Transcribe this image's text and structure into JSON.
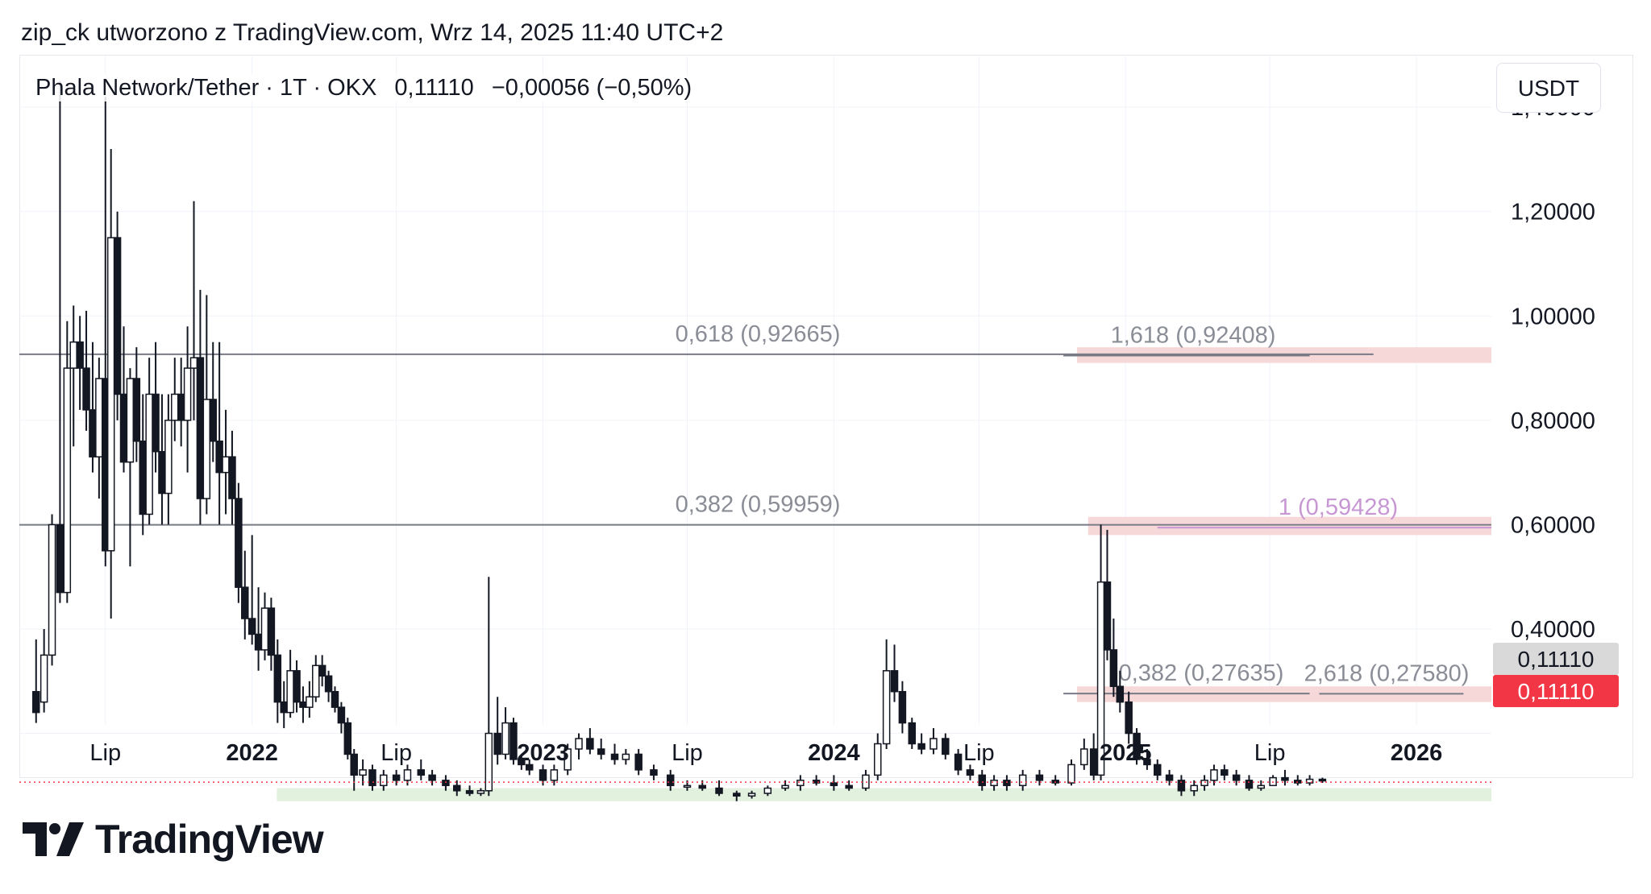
{
  "header": {
    "attribution": "zip_ck utworzono z TradingView.com, Wrz 14, 2025 11:40 UTC+2"
  },
  "legend": {
    "symbol": "Phala Network/Tether · 1T · OKX",
    "price": "0,11110",
    "change": "−0,00056 (−0,50%)"
  },
  "currency": "USDT",
  "price_tags": {
    "current": "0,11110",
    "last": "0,11110",
    "last_color": "#f23645",
    "current_color": "#d9d9d9"
  },
  "brand": {
    "name": "TradingView"
  },
  "chart_data": {
    "type": "candlestick",
    "y_axis": {
      "ylim": [
        0.02,
        1.5
      ],
      "ticks": [
        {
          "value": 1.4,
          "label": "1,40000"
        },
        {
          "value": 1.2,
          "label": "1,20000"
        },
        {
          "value": 1.0,
          "label": "1,00000"
        },
        {
          "value": 0.8,
          "label": "0,80000"
        },
        {
          "value": 0.6,
          "label": "0,60000"
        },
        {
          "value": 0.4,
          "label": "0,40000"
        }
      ]
    },
    "x_axis": {
      "range": [
        "2021-03-15",
        "2026-04-05"
      ],
      "ticks": [
        {
          "date": "2021-07-01",
          "label": "Lip",
          "bold": false
        },
        {
          "date": "2022-01-01",
          "label": "2022",
          "bold": true
        },
        {
          "date": "2022-07-01",
          "label": "Lip",
          "bold": false
        },
        {
          "date": "2023-01-01",
          "label": "2023",
          "bold": true
        },
        {
          "date": "2023-07-01",
          "label": "Lip",
          "bold": false
        },
        {
          "date": "2024-01-01",
          "label": "2024",
          "bold": true
        },
        {
          "date": "2024-07-01",
          "label": "Lip",
          "bold": false
        },
        {
          "date": "2025-01-01",
          "label": "2025",
          "bold": true
        },
        {
          "date": "2025-07-01",
          "label": "Lip",
          "bold": false
        },
        {
          "date": "2026-01-01",
          "label": "2026",
          "bold": true
        }
      ]
    },
    "current_price": 0.1111,
    "fib_levels": [
      {
        "label": "0,618 (0,92665)",
        "value": 0.92665,
        "x1": "2021-03-15",
        "x2": "2025-11-08",
        "color": "#787b86"
      },
      {
        "label": "0,382 (0,59959)",
        "value": 0.59959,
        "x1": "2021-03-15",
        "x2": "2026-04-05",
        "color": "#787b86"
      },
      {
        "label": "1,618 (0,92408)",
        "value": 0.92408,
        "x1": "2024-10-15",
        "x2": "2025-08-20",
        "color": "#787b86"
      },
      {
        "label": "1 (0,59428)",
        "value": 0.59428,
        "x1": "2025-02-10",
        "x2": "2026-04-05",
        "color": "#c797d4"
      },
      {
        "label": "0,382 (0,27635)",
        "value": 0.27635,
        "x1": "2024-10-15",
        "x2": "2025-08-20",
        "color": "#787b86"
      },
      {
        "label": "2,618 (0,27580)",
        "value": 0.2758,
        "x1": "2025-09-01",
        "x2": "2026-03-01",
        "color": "#787b86"
      }
    ],
    "zones": [
      {
        "y1": 0.91,
        "y2": 0.94,
        "x1": "2024-11-01",
        "x2": "2026-04-05",
        "color": "#f7d8d8"
      },
      {
        "y1": 0.58,
        "y2": 0.615,
        "x1": "2024-11-15",
        "x2": "2026-04-05",
        "color": "#f7d8d8"
      },
      {
        "y1": 0.26,
        "y2": 0.29,
        "x1": "2024-11-01",
        "x2": "2026-04-05",
        "color": "#f7d8d8"
      },
      {
        "y1": 0.07,
        "y2": 0.095,
        "x1": "2022-02-01",
        "x2": "2026-04-05",
        "color": "#e2f1de"
      }
    ],
    "candles": [
      {
        "t": "2021-04-05",
        "o": 0.28,
        "h": 0.38,
        "l": 0.22,
        "c": 0.24
      },
      {
        "t": "2021-04-15",
        "o": 0.26,
        "h": 0.4,
        "l": 0.24,
        "c": 0.35
      },
      {
        "t": "2021-04-25",
        "o": 0.35,
        "h": 0.62,
        "l": 0.33,
        "c": 0.6
      },
      {
        "t": "2021-05-05",
        "o": 0.6,
        "h": 1.45,
        "l": 0.45,
        "c": 0.47
      },
      {
        "t": "2021-05-14",
        "o": 0.47,
        "h": 0.99,
        "l": 0.45,
        "c": 0.9
      },
      {
        "t": "2021-05-22",
        "o": 0.9,
        "h": 1.02,
        "l": 0.75,
        "c": 0.95
      },
      {
        "t": "2021-05-30",
        "o": 0.95,
        "h": 1.0,
        "l": 0.82,
        "c": 0.9
      },
      {
        "t": "2021-06-07",
        "o": 0.9,
        "h": 1.01,
        "l": 0.78,
        "c": 0.82
      },
      {
        "t": "2021-06-15",
        "o": 0.82,
        "h": 0.95,
        "l": 0.7,
        "c": 0.73
      },
      {
        "t": "2021-06-23",
        "o": 0.73,
        "h": 0.92,
        "l": 0.65,
        "c": 0.88
      },
      {
        "t": "2021-07-01",
        "o": 0.88,
        "h": 1.42,
        "l": 0.52,
        "c": 0.55
      },
      {
        "t": "2021-07-08",
        "o": 0.55,
        "h": 1.32,
        "l": 0.42,
        "c": 1.15
      },
      {
        "t": "2021-07-16",
        "o": 1.15,
        "h": 1.2,
        "l": 0.8,
        "c": 0.85
      },
      {
        "t": "2021-07-24",
        "o": 0.85,
        "h": 0.98,
        "l": 0.7,
        "c": 0.72
      },
      {
        "t": "2021-08-01",
        "o": 0.72,
        "h": 0.9,
        "l": 0.52,
        "c": 0.88
      },
      {
        "t": "2021-08-09",
        "o": 0.88,
        "h": 0.94,
        "l": 0.72,
        "c": 0.76
      },
      {
        "t": "2021-08-17",
        "o": 0.76,
        "h": 0.85,
        "l": 0.58,
        "c": 0.62
      },
      {
        "t": "2021-08-25",
        "o": 0.62,
        "h": 0.92,
        "l": 0.6,
        "c": 0.85
      },
      {
        "t": "2021-09-02",
        "o": 0.85,
        "h": 0.95,
        "l": 0.7,
        "c": 0.74
      },
      {
        "t": "2021-09-10",
        "o": 0.74,
        "h": 0.85,
        "l": 0.6,
        "c": 0.66
      },
      {
        "t": "2021-09-18",
        "o": 0.66,
        "h": 0.85,
        "l": 0.6,
        "c": 0.8
      },
      {
        "t": "2021-09-26",
        "o": 0.8,
        "h": 0.92,
        "l": 0.76,
        "c": 0.85
      },
      {
        "t": "2021-10-04",
        "o": 0.85,
        "h": 0.92,
        "l": 0.75,
        "c": 0.8
      },
      {
        "t": "2021-10-12",
        "o": 0.8,
        "h": 0.98,
        "l": 0.7,
        "c": 0.9
      },
      {
        "t": "2021-10-20",
        "o": 0.9,
        "h": 1.22,
        "l": 0.8,
        "c": 0.92
      },
      {
        "t": "2021-10-28",
        "o": 0.92,
        "h": 1.05,
        "l": 0.6,
        "c": 0.65
      },
      {
        "t": "2021-11-05",
        "o": 0.65,
        "h": 1.04,
        "l": 0.62,
        "c": 0.84
      },
      {
        "t": "2021-11-13",
        "o": 0.84,
        "h": 0.95,
        "l": 0.72,
        "c": 0.76
      },
      {
        "t": "2021-11-21",
        "o": 0.76,
        "h": 0.95,
        "l": 0.6,
        "c": 0.7
      },
      {
        "t": "2021-11-29",
        "o": 0.7,
        "h": 0.82,
        "l": 0.62,
        "c": 0.73
      },
      {
        "t": "2021-12-07",
        "o": 0.73,
        "h": 0.78,
        "l": 0.6,
        "c": 0.65
      },
      {
        "t": "2021-12-15",
        "o": 0.65,
        "h": 0.68,
        "l": 0.45,
        "c": 0.48
      },
      {
        "t": "2021-12-23",
        "o": 0.48,
        "h": 0.55,
        "l": 0.38,
        "c": 0.42
      },
      {
        "t": "2022-01-01",
        "o": 0.42,
        "h": 0.58,
        "l": 0.37,
        "c": 0.39
      },
      {
        "t": "2022-01-09",
        "o": 0.39,
        "h": 0.48,
        "l": 0.32,
        "c": 0.36
      },
      {
        "t": "2022-01-17",
        "o": 0.36,
        "h": 0.47,
        "l": 0.34,
        "c": 0.44
      },
      {
        "t": "2022-01-25",
        "o": 0.44,
        "h": 0.46,
        "l": 0.32,
        "c": 0.35
      },
      {
        "t": "2022-02-02",
        "o": 0.35,
        "h": 0.38,
        "l": 0.22,
        "c": 0.26
      },
      {
        "t": "2022-02-10",
        "o": 0.26,
        "h": 0.3,
        "l": 0.21,
        "c": 0.24
      },
      {
        "t": "2022-02-18",
        "o": 0.24,
        "h": 0.36,
        "l": 0.23,
        "c": 0.32
      },
      {
        "t": "2022-02-26",
        "o": 0.32,
        "h": 0.34,
        "l": 0.24,
        "c": 0.26
      },
      {
        "t": "2022-03-06",
        "o": 0.26,
        "h": 0.29,
        "l": 0.22,
        "c": 0.25
      },
      {
        "t": "2022-03-14",
        "o": 0.25,
        "h": 0.3,
        "l": 0.23,
        "c": 0.27
      },
      {
        "t": "2022-03-22",
        "o": 0.27,
        "h": 0.35,
        "l": 0.26,
        "c": 0.33
      },
      {
        "t": "2022-03-30",
        "o": 0.33,
        "h": 0.35,
        "l": 0.29,
        "c": 0.31
      },
      {
        "t": "2022-04-07",
        "o": 0.31,
        "h": 0.32,
        "l": 0.26,
        "c": 0.28
      },
      {
        "t": "2022-04-15",
        "o": 0.28,
        "h": 0.29,
        "l": 0.24,
        "c": 0.25
      },
      {
        "t": "2022-04-23",
        "o": 0.25,
        "h": 0.26,
        "l": 0.2,
        "c": 0.22
      },
      {
        "t": "2022-05-01",
        "o": 0.22,
        "h": 0.23,
        "l": 0.15,
        "c": 0.16
      },
      {
        "t": "2022-05-09",
        "o": 0.16,
        "h": 0.17,
        "l": 0.09,
        "c": 0.12
      },
      {
        "t": "2022-05-20",
        "o": 0.12,
        "h": 0.15,
        "l": 0.1,
        "c": 0.13
      },
      {
        "t": "2022-06-01",
        "o": 0.13,
        "h": 0.14,
        "l": 0.09,
        "c": 0.1
      },
      {
        "t": "2022-06-15",
        "o": 0.1,
        "h": 0.13,
        "l": 0.09,
        "c": 0.12
      },
      {
        "t": "2022-07-01",
        "o": 0.12,
        "h": 0.13,
        "l": 0.1,
        "c": 0.11
      },
      {
        "t": "2022-07-15",
        "o": 0.11,
        "h": 0.14,
        "l": 0.1,
        "c": 0.13
      },
      {
        "t": "2022-08-01",
        "o": 0.13,
        "h": 0.15,
        "l": 0.11,
        "c": 0.12
      },
      {
        "t": "2022-08-15",
        "o": 0.12,
        "h": 0.13,
        "l": 0.1,
        "c": 0.11
      },
      {
        "t": "2022-09-01",
        "o": 0.11,
        "h": 0.12,
        "l": 0.09,
        "c": 0.1
      },
      {
        "t": "2022-09-15",
        "o": 0.1,
        "h": 0.11,
        "l": 0.08,
        "c": 0.09
      },
      {
        "t": "2022-10-01",
        "o": 0.09,
        "h": 0.1,
        "l": 0.08,
        "c": 0.085
      },
      {
        "t": "2022-10-15",
        "o": 0.085,
        "h": 0.095,
        "l": 0.08,
        "c": 0.09
      },
      {
        "t": "2022-10-25",
        "o": 0.09,
        "h": 0.5,
        "l": 0.08,
        "c": 0.2
      },
      {
        "t": "2022-11-05",
        "o": 0.2,
        "h": 0.27,
        "l": 0.14,
        "c": 0.16
      },
      {
        "t": "2022-11-15",
        "o": 0.16,
        "h": 0.25,
        "l": 0.15,
        "c": 0.22
      },
      {
        "t": "2022-11-25",
        "o": 0.22,
        "h": 0.23,
        "l": 0.14,
        "c": 0.15
      },
      {
        "t": "2022-12-05",
        "o": 0.15,
        "h": 0.16,
        "l": 0.13,
        "c": 0.14
      },
      {
        "t": "2022-12-15",
        "o": 0.14,
        "h": 0.15,
        "l": 0.12,
        "c": 0.13
      },
      {
        "t": "2023-01-01",
        "o": 0.13,
        "h": 0.14,
        "l": 0.1,
        "c": 0.11
      },
      {
        "t": "2023-01-15",
        "o": 0.11,
        "h": 0.14,
        "l": 0.1,
        "c": 0.13
      },
      {
        "t": "2023-02-01",
        "o": 0.13,
        "h": 0.18,
        "l": 0.12,
        "c": 0.17
      },
      {
        "t": "2023-02-15",
        "o": 0.17,
        "h": 0.2,
        "l": 0.15,
        "c": 0.19
      },
      {
        "t": "2023-03-01",
        "o": 0.19,
        "h": 0.21,
        "l": 0.16,
        "c": 0.17
      },
      {
        "t": "2023-03-15",
        "o": 0.17,
        "h": 0.19,
        "l": 0.15,
        "c": 0.16
      },
      {
        "t": "2023-04-01",
        "o": 0.16,
        "h": 0.18,
        "l": 0.14,
        "c": 0.15
      },
      {
        "t": "2023-04-15",
        "o": 0.15,
        "h": 0.17,
        "l": 0.14,
        "c": 0.16
      },
      {
        "t": "2023-05-01",
        "o": 0.16,
        "h": 0.17,
        "l": 0.12,
        "c": 0.13
      },
      {
        "t": "2023-05-20",
        "o": 0.13,
        "h": 0.14,
        "l": 0.11,
        "c": 0.12
      },
      {
        "t": "2023-06-10",
        "o": 0.12,
        "h": 0.13,
        "l": 0.09,
        "c": 0.1
      },
      {
        "t": "2023-07-01",
        "o": 0.1,
        "h": 0.11,
        "l": 0.09,
        "c": 0.1
      },
      {
        "t": "2023-07-20",
        "o": 0.1,
        "h": 0.11,
        "l": 0.09,
        "c": 0.095
      },
      {
        "t": "2023-08-10",
        "o": 0.095,
        "h": 0.11,
        "l": 0.08,
        "c": 0.085
      },
      {
        "t": "2023-09-01",
        "o": 0.085,
        "h": 0.09,
        "l": 0.07,
        "c": 0.08
      },
      {
        "t": "2023-09-20",
        "o": 0.08,
        "h": 0.09,
        "l": 0.075,
        "c": 0.085
      },
      {
        "t": "2023-10-10",
        "o": 0.085,
        "h": 0.1,
        "l": 0.08,
        "c": 0.095
      },
      {
        "t": "2023-11-01",
        "o": 0.095,
        "h": 0.11,
        "l": 0.09,
        "c": 0.1
      },
      {
        "t": "2023-11-20",
        "o": 0.1,
        "h": 0.12,
        "l": 0.09,
        "c": 0.11
      },
      {
        "t": "2023-12-10",
        "o": 0.11,
        "h": 0.12,
        "l": 0.1,
        "c": 0.105
      },
      {
        "t": "2024-01-01",
        "o": 0.105,
        "h": 0.12,
        "l": 0.09,
        "c": 0.1
      },
      {
        "t": "2024-01-20",
        "o": 0.1,
        "h": 0.11,
        "l": 0.09,
        "c": 0.095
      },
      {
        "t": "2024-02-10",
        "o": 0.095,
        "h": 0.13,
        "l": 0.09,
        "c": 0.12
      },
      {
        "t": "2024-02-25",
        "o": 0.12,
        "h": 0.2,
        "l": 0.11,
        "c": 0.18
      },
      {
        "t": "2024-03-07",
        "o": 0.18,
        "h": 0.38,
        "l": 0.17,
        "c": 0.32
      },
      {
        "t": "2024-03-17",
        "o": 0.32,
        "h": 0.37,
        "l": 0.26,
        "c": 0.28
      },
      {
        "t": "2024-03-27",
        "o": 0.28,
        "h": 0.3,
        "l": 0.2,
        "c": 0.22
      },
      {
        "t": "2024-04-08",
        "o": 0.22,
        "h": 0.23,
        "l": 0.17,
        "c": 0.18
      },
      {
        "t": "2024-04-20",
        "o": 0.18,
        "h": 0.2,
        "l": 0.16,
        "c": 0.17
      },
      {
        "t": "2024-05-05",
        "o": 0.17,
        "h": 0.21,
        "l": 0.16,
        "c": 0.19
      },
      {
        "t": "2024-05-20",
        "o": 0.19,
        "h": 0.2,
        "l": 0.15,
        "c": 0.16
      },
      {
        "t": "2024-06-05",
        "o": 0.16,
        "h": 0.17,
        "l": 0.12,
        "c": 0.13
      },
      {
        "t": "2024-06-20",
        "o": 0.13,
        "h": 0.14,
        "l": 0.11,
        "c": 0.12
      },
      {
        "t": "2024-07-05",
        "o": 0.12,
        "h": 0.13,
        "l": 0.09,
        "c": 0.1
      },
      {
        "t": "2024-07-20",
        "o": 0.1,
        "h": 0.12,
        "l": 0.09,
        "c": 0.11
      },
      {
        "t": "2024-08-05",
        "o": 0.11,
        "h": 0.12,
        "l": 0.09,
        "c": 0.1
      },
      {
        "t": "2024-08-25",
        "o": 0.1,
        "h": 0.13,
        "l": 0.09,
        "c": 0.12
      },
      {
        "t": "2024-09-15",
        "o": 0.12,
        "h": 0.13,
        "l": 0.1,
        "c": 0.11
      },
      {
        "t": "2024-10-05",
        "o": 0.11,
        "h": 0.12,
        "l": 0.1,
        "c": 0.105
      },
      {
        "t": "2024-10-25",
        "o": 0.105,
        "h": 0.15,
        "l": 0.1,
        "c": 0.14
      },
      {
        "t": "2024-11-10",
        "o": 0.14,
        "h": 0.19,
        "l": 0.13,
        "c": 0.17
      },
      {
        "t": "2024-11-22",
        "o": 0.17,
        "h": 0.2,
        "l": 0.11,
        "c": 0.12
      },
      {
        "t": "2024-12-01",
        "o": 0.12,
        "h": 0.6,
        "l": 0.11,
        "c": 0.49
      },
      {
        "t": "2024-12-09",
        "o": 0.49,
        "h": 0.59,
        "l": 0.34,
        "c": 0.36
      },
      {
        "t": "2024-12-17",
        "o": 0.36,
        "h": 0.42,
        "l": 0.27,
        "c": 0.29
      },
      {
        "t": "2024-12-25",
        "o": 0.29,
        "h": 0.32,
        "l": 0.24,
        "c": 0.26
      },
      {
        "t": "2025-01-05",
        "o": 0.26,
        "h": 0.28,
        "l": 0.18,
        "c": 0.2
      },
      {
        "t": "2025-01-15",
        "o": 0.2,
        "h": 0.21,
        "l": 0.14,
        "c": 0.15
      },
      {
        "t": "2025-01-28",
        "o": 0.15,
        "h": 0.17,
        "l": 0.13,
        "c": 0.14
      },
      {
        "t": "2025-02-10",
        "o": 0.14,
        "h": 0.15,
        "l": 0.11,
        "c": 0.12
      },
      {
        "t": "2025-02-25",
        "o": 0.12,
        "h": 0.13,
        "l": 0.1,
        "c": 0.11
      },
      {
        "t": "2025-03-12",
        "o": 0.11,
        "h": 0.12,
        "l": 0.08,
        "c": 0.09
      },
      {
        "t": "2025-03-28",
        "o": 0.09,
        "h": 0.11,
        "l": 0.08,
        "c": 0.1
      },
      {
        "t": "2025-04-10",
        "o": 0.1,
        "h": 0.12,
        "l": 0.09,
        "c": 0.11
      },
      {
        "t": "2025-04-22",
        "o": 0.11,
        "h": 0.14,
        "l": 0.1,
        "c": 0.13
      },
      {
        "t": "2025-05-05",
        "o": 0.13,
        "h": 0.14,
        "l": 0.11,
        "c": 0.12
      },
      {
        "t": "2025-05-20",
        "o": 0.12,
        "h": 0.13,
        "l": 0.1,
        "c": 0.11
      },
      {
        "t": "2025-06-05",
        "o": 0.11,
        "h": 0.12,
        "l": 0.09,
        "c": 0.095
      },
      {
        "t": "2025-06-20",
        "o": 0.095,
        "h": 0.11,
        "l": 0.09,
        "c": 0.1
      },
      {
        "t": "2025-07-05",
        "o": 0.1,
        "h": 0.12,
        "l": 0.1,
        "c": 0.115
      },
      {
        "t": "2025-07-20",
        "o": 0.115,
        "h": 0.13,
        "l": 0.1,
        "c": 0.11
      },
      {
        "t": "2025-08-05",
        "o": 0.11,
        "h": 0.12,
        "l": 0.1,
        "c": 0.105
      },
      {
        "t": "2025-08-20",
        "o": 0.105,
        "h": 0.12,
        "l": 0.1,
        "c": 0.112
      },
      {
        "t": "2025-09-05",
        "o": 0.112,
        "h": 0.115,
        "l": 0.105,
        "c": 0.1111
      }
    ]
  }
}
